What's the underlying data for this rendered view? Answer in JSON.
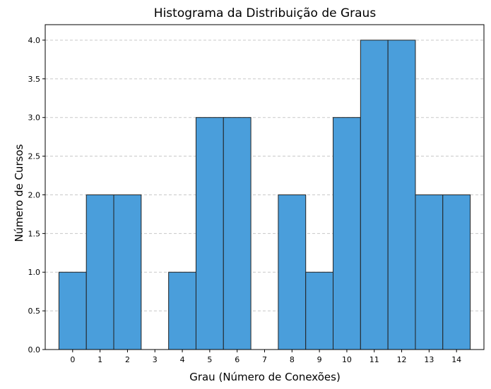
{
  "chart_data": {
    "type": "bar",
    "title": "Histograma da Distribuição de Graus",
    "xlabel": "Grau (Número de Conexões)",
    "ylabel": "Número de Cursos",
    "categories": [
      "0",
      "1",
      "2",
      "3",
      "4",
      "5",
      "6",
      "7",
      "8",
      "9",
      "10",
      "11",
      "12",
      "13",
      "14"
    ],
    "values": [
      1,
      2,
      2,
      0,
      1,
      3,
      3,
      0,
      2,
      1,
      3,
      4,
      4,
      2,
      2
    ],
    "xlim": [
      -1,
      15
    ],
    "ylim": [
      0,
      4.2
    ],
    "yticks": [
      "0.0",
      "0.5",
      "1.0",
      "1.5",
      "2.0",
      "2.5",
      "3.0",
      "3.5",
      "4.0"
    ],
    "grid": "y-dashed",
    "colors": {
      "bar": "#4a9edb",
      "edge": "#222222",
      "grid": "#c8c8c8"
    }
  }
}
